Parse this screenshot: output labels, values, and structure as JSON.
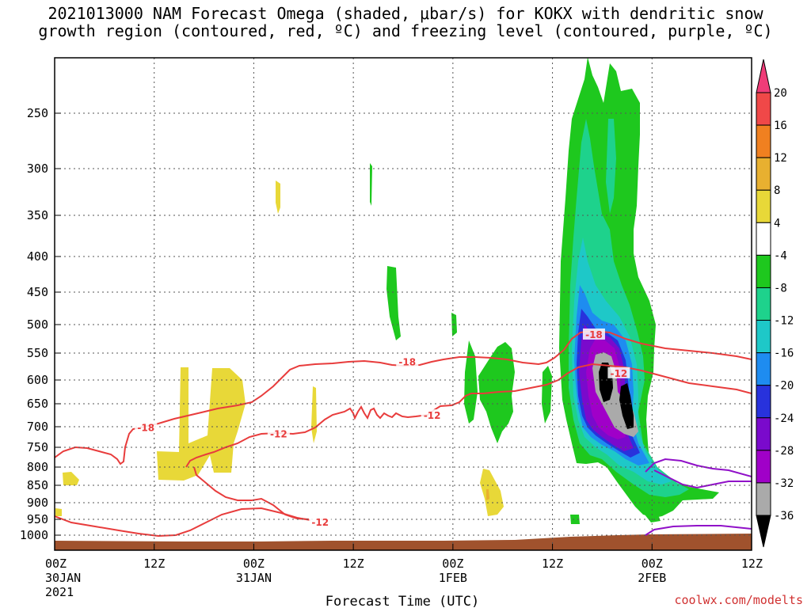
{
  "title": {
    "line1": "2021013000 NAM Forecast Omega (shaded, μbar/s) for KOKX with dendritic snow",
    "line2": "growth region (contoured, red, ºC) and freezing level (contoured, purple, ºC)"
  },
  "credit": "coolwx.com/modelts",
  "chart_data": {
    "type": "heatmap",
    "title": "2021013000 NAM Forecast Omega (shaded, μbar/s) for KOKX with dendritic snow growth region (contoured, red, ºC) and freezing level (contoured, purple, ºC)",
    "xlabel": "Forecast Time (UTC)",
    "ylabel": "",
    "x_range_hours": [
      0,
      84
    ],
    "x_ticks": [
      {
        "hour": 0,
        "label": "00Z",
        "sub": "30JAN",
        "sub2": "2021"
      },
      {
        "hour": 12,
        "label": "12Z",
        "sub": "",
        "sub2": ""
      },
      {
        "hour": 24,
        "label": "00Z",
        "sub": "31JAN",
        "sub2": ""
      },
      {
        "hour": 36,
        "label": "12Z",
        "sub": "",
        "sub2": ""
      },
      {
        "hour": 48,
        "label": "00Z",
        "sub": "1FEB",
        "sub2": ""
      },
      {
        "hour": 60,
        "label": "12Z",
        "sub": "",
        "sub2": ""
      },
      {
        "hour": 72,
        "label": "00Z",
        "sub": "2FEB",
        "sub2": ""
      },
      {
        "hour": 84,
        "label": "12Z",
        "sub": "",
        "sub2": ""
      }
    ],
    "y_ticks_hpa": [
      250,
      300,
      350,
      400,
      450,
      500,
      550,
      600,
      650,
      700,
      750,
      800,
      850,
      900,
      950,
      1000
    ],
    "y_range_hpa": [
      200,
      1020
    ],
    "grid": true,
    "colorbar": {
      "labels": [
        "20",
        "16",
        "12",
        "8",
        "4",
        "-4",
        "-8",
        "-12",
        "-16",
        "-20",
        "-24",
        "-28",
        "-32",
        "-36"
      ],
      "colors": [
        "#f03c78",
        "#f04848",
        "#f08020",
        "#e8b030",
        "#e8d838",
        "#ffffff",
        "#1ec81e",
        "#1ed28c",
        "#1ec8c8",
        "#1e8cf0",
        "#2832dc",
        "#7a0acc",
        "#a000c8",
        "#aaaaaa",
        "#000000"
      ]
    },
    "shading_colors": {
      "pos_4_8": "#e8d838",
      "pos_8_12": "#e8b030",
      "neg_4_8": "#1ec81e",
      "neg_8_12": "#1ed28c",
      "neg_12_16": "#1ec8c8",
      "neg_16_20": "#1e8cf0",
      "neg_20_24": "#2832dc",
      "neg_24_28": "#7a0acc",
      "neg_28_32": "#a000c8",
      "neg_32_36": "#aaaaaa",
      "below_36": "#000000",
      "terrain": "#a0522d",
      "dgz": "#e83c3c",
      "freezing": "#9010c8"
    },
    "contour_labels": [
      {
        "text": "-18",
        "hour": 11.0,
        "hpa": 703
      },
      {
        "text": "-18",
        "hour": 42.5,
        "hpa": 567
      },
      {
        "text": "-18",
        "hour": 65.0,
        "hpa": 518
      },
      {
        "text": "-12",
        "hour": 27.0,
        "hpa": 718
      },
      {
        "text": "-12",
        "hour": 45.5,
        "hpa": 676
      },
      {
        "text": "-12",
        "hour": 68.0,
        "hpa": 588
      },
      {
        "text": "-12",
        "hour": 32.0,
        "hpa": 960
      }
    ]
  }
}
